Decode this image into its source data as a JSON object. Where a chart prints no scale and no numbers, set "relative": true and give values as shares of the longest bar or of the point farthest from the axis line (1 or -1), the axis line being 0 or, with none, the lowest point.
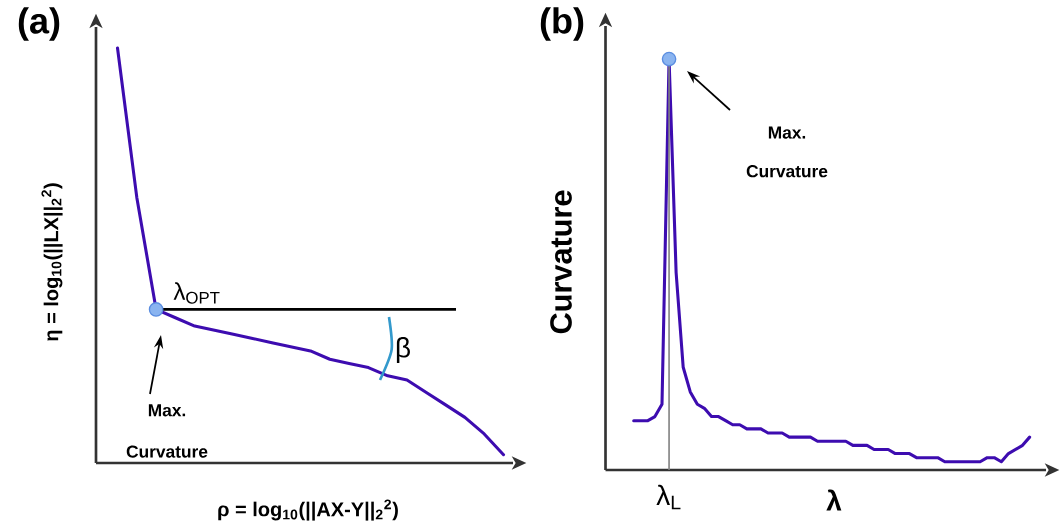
{
  "chart_data": [
    {
      "type": "line",
      "title": "(a)",
      "xlabel": "ρ = log$_{10}$(||AX-Y||$_{2}$$^{2}$)",
      "ylabel": "η = log$_{10}$(||LX||$_{2}$$^{2}$)",
      "relative": true,
      "categories": [
        null,
        null,
        null,
        null,
        null,
        null,
        null,
        null,
        null,
        null,
        null,
        null,
        null,
        null,
        null,
        null,
        null,
        null,
        null,
        null,
        null
      ],
      "series": [
        {
          "color": "#3d0cb0",
          "values": [
            1,
            0.64,
            0.37,
            0.35,
            0.33,
            0.32,
            0.31,
            0.3,
            0.29,
            0.28,
            0.27,
            0.25,
            0.24,
            0.23,
            0.21,
            0.2,
            0.17,
            0.14,
            0.11,
            0.07,
            0.02
          ]
        }
      ],
      "annotations": [
        "λ$_{OPT}$",
        "β",
        "Max. Curvature"
      ]
    },
    {
      "type": "line",
      "title": "(b)",
      "xlabel": "λ",
      "ylabel": "Curvature",
      "relative": true,
      "categories": [
        null,
        null,
        null,
        null,
        null,
        null,
        null,
        null,
        null,
        null,
        null,
        null,
        null,
        null,
        null,
        null,
        null,
        null,
        null,
        null,
        null,
        null,
        null,
        null,
        null,
        null,
        null,
        null,
        null,
        null,
        null,
        null,
        null,
        null,
        null,
        null,
        null,
        null,
        null,
        null,
        null,
        null,
        null,
        null,
        null,
        null,
        null,
        null,
        null,
        null,
        null,
        null,
        null,
        null,
        null,
        null,
        null
      ],
      "series": [
        {
          "color": "#3d0cb0",
          "values": [
            0.12,
            0.12,
            0.12,
            0.13,
            0.16,
            1,
            0.48,
            0.25,
            0.19,
            0.16,
            0.15,
            0.13,
            0.13,
            0.12,
            0.11,
            0.11,
            0.1,
            0.1,
            0.1,
            0.09,
            0.09,
            0.09,
            0.08,
            0.08,
            0.08,
            0.08,
            0.07,
            0.07,
            0.07,
            0.07,
            0.07,
            0.06,
            0.06,
            0.06,
            0.05,
            0.05,
            0.05,
            0.04,
            0.04,
            0.04,
            0.03,
            0.03,
            0.03,
            0.03,
            0.02,
            0.02,
            0.02,
            0.02,
            0.02,
            0.02,
            0.03,
            0.03,
            0.02,
            0.04,
            0.05,
            0.06,
            0.08
          ]
        }
      ],
      "annotations": [
        "Max. Curvature",
        "λ$_{L}$"
      ]
    }
  ]
}
